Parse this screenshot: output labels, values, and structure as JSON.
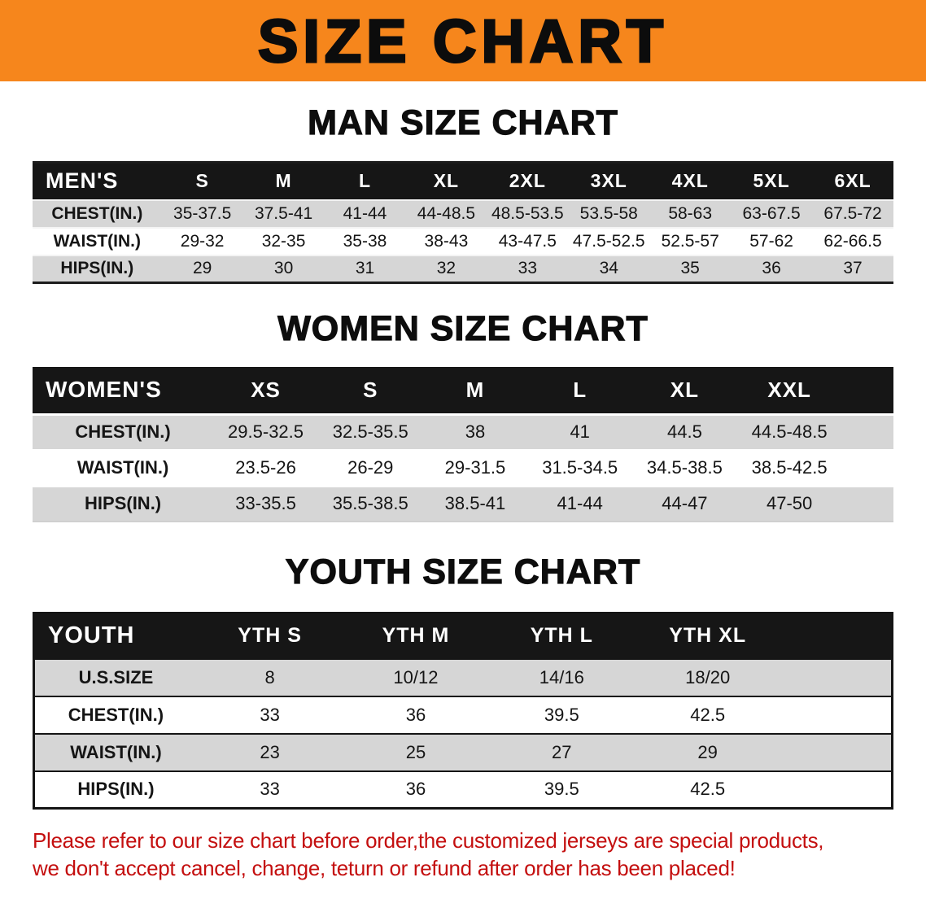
{
  "banner": {
    "title": "SIZE CHART"
  },
  "sections": [
    {
      "id": "men",
      "heading": "MAN SIZE CHART",
      "table": {
        "header": [
          "MEN'S",
          "S",
          "M",
          "L",
          "XL",
          "2XL",
          "3XL",
          "4XL",
          "5XL",
          "6XL"
        ],
        "rows": [
          {
            "label": "CHEST(IN.)",
            "values": [
              "35-37.5",
              "37.5-41",
              "41-44",
              "44-48.5",
              "48.5-53.5",
              "53.5-58",
              "58-63",
              "63-67.5",
              "67.5-72"
            ]
          },
          {
            "label": "WAIST(IN.)",
            "values": [
              "29-32",
              "32-35",
              "35-38",
              "38-43",
              "43-47.5",
              "47.5-52.5",
              "52.5-57",
              "57-62",
              "62-66.5"
            ]
          },
          {
            "label": "HIPS(IN.)",
            "values": [
              "29",
              "30",
              "31",
              "32",
              "33",
              "34",
              "35",
              "36",
              "37"
            ]
          }
        ]
      }
    },
    {
      "id": "women",
      "heading": "WOMEN SIZE CHART",
      "table": {
        "header": [
          "WOMEN'S",
          "XS",
          "S",
          "M",
          "L",
          "XL",
          "XXL"
        ],
        "rows": [
          {
            "label": "CHEST(IN.)",
            "values": [
              "29.5-32.5",
              "32.5-35.5",
              "38",
              "41",
              "44.5",
              "44.5-48.5"
            ]
          },
          {
            "label": "WAIST(IN.)",
            "values": [
              "23.5-26",
              "26-29",
              "29-31.5",
              "31.5-34.5",
              "34.5-38.5",
              "38.5-42.5"
            ]
          },
          {
            "label": "HIPS(IN.)",
            "values": [
              "33-35.5",
              "35.5-38.5",
              "38.5-41",
              "41-44",
              "44-47",
              "47-50"
            ]
          }
        ]
      }
    },
    {
      "id": "youth",
      "heading": "YOUTH SIZE CHART",
      "table": {
        "header": [
          "YOUTH",
          "YTH S",
          "YTH M",
          "YTH L",
          "YTH XL"
        ],
        "rows": [
          {
            "label": "U.S.SIZE",
            "values": [
              "8",
              "10/12",
              "14/16",
              "18/20"
            ]
          },
          {
            "label": "CHEST(IN.)",
            "values": [
              "33",
              "36",
              "39.5",
              "42.5"
            ]
          },
          {
            "label": "WAIST(IN.)",
            "values": [
              "23",
              "25",
              "27",
              "29"
            ]
          },
          {
            "label": "HIPS(IN.)",
            "values": [
              "33",
              "36",
              "39.5",
              "42.5"
            ]
          }
        ]
      }
    }
  ],
  "footer": {
    "line1": "Please refer to our size chart before order,the customized jerseys are special products,",
    "line2": "we don't accept cancel, change, teturn or refund after order has been placed!",
    "text_color": "#c40f0f"
  },
  "colors": {
    "banner_orange": "#f6861c",
    "header_black": "#161616",
    "row_gray": "#d6d6d6"
  }
}
